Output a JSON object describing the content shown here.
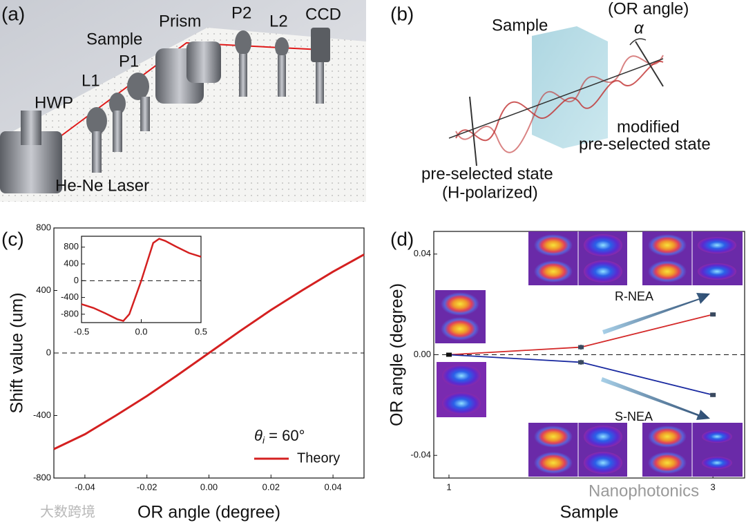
{
  "figure": {
    "panel_labels": [
      "(a)",
      "(b)",
      "(c)",
      "(d)"
    ],
    "setup_labels": [
      "HWP",
      "L1",
      "P1",
      "Sample",
      "Prism",
      "P2",
      "L2",
      "CCD",
      "He-Ne Laser"
    ],
    "diagram_labels": [
      "Sample",
      "(OR angle)",
      "α",
      "modified",
      "pre-selected state",
      "pre-selected state",
      "(H-polarized)"
    ],
    "watermarks": [
      "大数跨境",
      "Nanophotonics"
    ]
  },
  "chart_data": [
    {
      "type": "line",
      "x": [
        -0.05,
        -0.04,
        -0.03,
        -0.02,
        -0.01,
        0,
        0.01,
        0.02,
        0.03,
        0.04,
        0.05
      ],
      "series": [
        {
          "name": "Theory",
          "color": "#d42020",
          "values": [
            -615,
            -520,
            -400,
            -275,
            -140,
            0,
            140,
            275,
            400,
            520,
            630
          ]
        }
      ],
      "xlim": [
        -0.05,
        0.05
      ],
      "xticks": [
        -0.04,
        -0.02,
        {
          "value": 0,
          "label": "0.00"
        },
        0.02,
        0.04
      ],
      "ylim": [
        -800,
        800
      ],
      "yticks": [
        -800,
        -400,
        0,
        400,
        800
      ],
      "xlabel": "OR angle (degree)",
      "ylabel": "Shift value (um)",
      "reference_line": 0,
      "annotation": {
        "symbol": "θ",
        "subscript": "i",
        "text": " = 60°"
      },
      "legend": "lower right",
      "inset": {
        "x": [
          -0.5,
          -0.4,
          -0.3,
          -0.2,
          -0.15,
          -0.1,
          -0.05,
          0,
          0.05,
          0.1,
          0.15,
          0.2,
          0.3,
          0.4,
          0.5
        ],
        "values": [
          -560,
          -650,
          -780,
          -920,
          -960,
          -800,
          -400,
          0,
          450,
          900,
          1000,
          950,
          800,
          660,
          570
        ],
        "color": "#d42020",
        "xlim": [
          -0.5,
          0.5
        ],
        "xticks": [
          -0.5,
          {
            "value": 0,
            "label": "0.0"
          },
          0.5
        ],
        "ylim": [
          -1000,
          1060
        ],
        "yticks": [
          -800,
          -400,
          0,
          400,
          800
        ],
        "reference_line": 0
      }
    },
    {
      "type": "line",
      "x": [
        1,
        2,
        3
      ],
      "series": [
        {
          "name": "R-NEA",
          "color": "#d42a2a",
          "values": [
            0,
            0.003,
            0.016
          ],
          "errors": [
            0.0005,
            0.001,
            0.0008
          ]
        },
        {
          "name": "S-NEA",
          "color": "#1a2aa0",
          "values": [
            0,
            -0.003,
            -0.016
          ],
          "errors": [
            0.0005,
            0.001,
            0.0008
          ]
        }
      ],
      "marker_color": "#3a4a60",
      "xlim": [
        0.885,
        3.24
      ],
      "xticks": [
        1,
        3
      ],
      "ylim": [
        -0.049,
        0.049
      ],
      "yticks": [
        -0.04,
        {
          "value": 0,
          "label": "0.00"
        },
        0.04
      ],
      "xlabel": "Sample",
      "ylabel": "OR angle (degree)",
      "reference_line": 0
    }
  ]
}
